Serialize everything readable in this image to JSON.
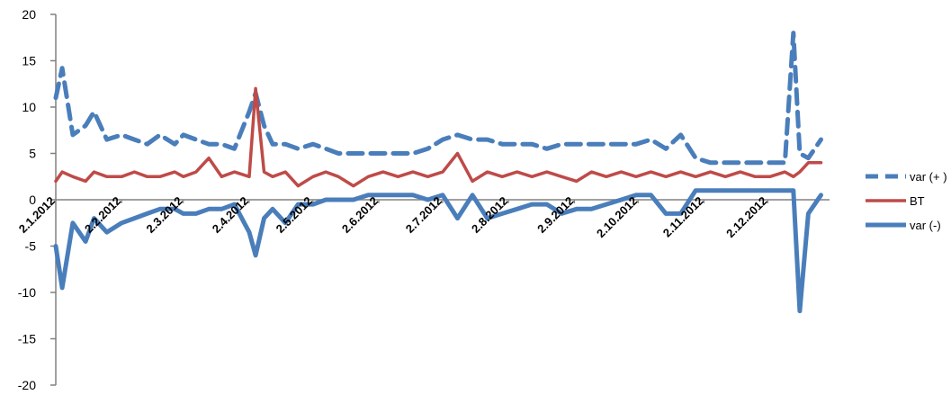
{
  "chart_data": {
    "type": "line",
    "title": "",
    "xlabel": "",
    "ylabel": "",
    "ylim": [
      -20,
      20
    ],
    "y_ticks": [
      -20,
      -15,
      -10,
      -5,
      0,
      5,
      10,
      15,
      20
    ],
    "x_tick_labels": [
      "2.1.2012",
      "2.2.2012",
      "2.3.2012",
      "2.4.2012",
      "2.5.2012",
      "2.6.2012",
      "2.7.2012",
      "2.8.2012",
      "2.9.2012",
      "2.10.2012",
      "2.11.2012",
      "2.12.2012"
    ],
    "x": [
      "2.1.2012",
      "5.1.2012",
      "10.1.2012",
      "16.1.2012",
      "20.1.2012",
      "26.1.2012",
      "2.2.2012",
      "8.2.2012",
      "14.2.2012",
      "20.2.2012",
      "27.2.2012",
      "2.3.2012",
      "8.3.2012",
      "14.3.2012",
      "20.3.2012",
      "26.3.2012",
      "2.4.2012",
      "5.4.2012",
      "9.4.2012",
      "13.4.2012",
      "19.4.2012",
      "25.4.2012",
      "2.5.2012",
      "8.5.2012",
      "14.5.2012",
      "21.5.2012",
      "28.5.2012",
      "4.6.2012",
      "11.6.2012",
      "18.6.2012",
      "25.6.2012",
      "2.7.2012",
      "9.7.2012",
      "16.7.2012",
      "23.7.2012",
      "30.7.2012",
      "6.8.2012",
      "13.8.2012",
      "20.8.2012",
      "27.8.2012",
      "3.9.2012",
      "10.9.2012",
      "17.9.2012",
      "24.9.2012",
      "1.10.2012",
      "8.10.2012",
      "15.10.2012",
      "22.10.2012",
      "29.10.2012",
      "5.11.2012",
      "12.11.2012",
      "19.11.2012",
      "26.11.2012",
      "3.12.2012",
      "10.12.2012",
      "14.12.2012",
      "17.12.2012",
      "21.12.2012",
      "27.12.2012"
    ],
    "series": [
      {
        "name": "var (+ )",
        "color": "#4a7ebb",
        "style": "dashed",
        "values": [
          11.0,
          14.2,
          7.0,
          8.0,
          9.5,
          6.5,
          7.0,
          6.5,
          6.0,
          7.0,
          6.0,
          7.0,
          6.5,
          6.0,
          6.0,
          5.5,
          9.5,
          11.5,
          8.0,
          6.0,
          6.0,
          5.5,
          6.0,
          5.5,
          5.0,
          5.0,
          5.0,
          5.0,
          5.0,
          5.0,
          5.5,
          6.5,
          7.0,
          6.5,
          6.5,
          6.0,
          6.0,
          6.0,
          5.5,
          6.0,
          6.0,
          6.0,
          6.0,
          6.0,
          6.0,
          6.5,
          5.5,
          7.0,
          4.5,
          4.0,
          4.0,
          4.0,
          4.0,
          4.0,
          4.0,
          18.0,
          5.0,
          4.5,
          6.5
        ]
      },
      {
        "name": "BT",
        "color": "#be4b48",
        "style": "solid",
        "values": [
          2.0,
          3.0,
          2.5,
          2.0,
          3.0,
          2.5,
          2.5,
          3.0,
          2.5,
          2.5,
          3.0,
          2.5,
          3.0,
          4.5,
          2.5,
          3.0,
          2.5,
          12.0,
          3.0,
          2.5,
          3.0,
          1.5,
          2.5,
          3.0,
          2.5,
          1.5,
          2.5,
          3.0,
          2.5,
          3.0,
          2.5,
          3.0,
          5.0,
          2.0,
          3.0,
          2.5,
          3.0,
          2.5,
          3.0,
          2.5,
          2.0,
          3.0,
          2.5,
          3.0,
          2.5,
          3.0,
          2.5,
          3.0,
          2.5,
          3.0,
          2.5,
          3.0,
          2.5,
          2.5,
          3.0,
          2.5,
          3.0,
          4.0,
          4.0
        ]
      },
      {
        "name": "var (-)",
        "color": "#4a7ebb",
        "style": "solid",
        "values": [
          -5.0,
          -9.5,
          -2.5,
          -4.5,
          -2.0,
          -3.5,
          -2.5,
          -2.0,
          -1.5,
          -1.0,
          -1.0,
          -1.5,
          -1.5,
          -1.0,
          -1.0,
          -0.5,
          -3.5,
          -6.0,
          -2.0,
          -1.0,
          -2.5,
          -0.5,
          -0.5,
          0.0,
          0.0,
          0.0,
          0.5,
          0.5,
          0.5,
          0.5,
          0.0,
          0.5,
          -2.0,
          0.5,
          -2.0,
          -1.5,
          -1.0,
          -0.5,
          -0.5,
          -1.5,
          -1.0,
          -1.0,
          -0.5,
          0.0,
          0.5,
          0.5,
          -1.5,
          -1.5,
          1.0,
          1.0,
          1.0,
          1.0,
          1.0,
          1.0,
          1.0,
          1.0,
          -12.0,
          -1.5,
          0.5
        ]
      }
    ],
    "legend": {
      "position": "right",
      "entries": [
        {
          "label": "var (+ )",
          "color": "#4a7ebb",
          "style": "dashed"
        },
        {
          "label": "BT",
          "color": "#be4b48",
          "style": "solid"
        },
        {
          "label": "var (-)",
          "color": "#4a7ebb",
          "style": "solid"
        }
      ]
    },
    "grid": false
  }
}
